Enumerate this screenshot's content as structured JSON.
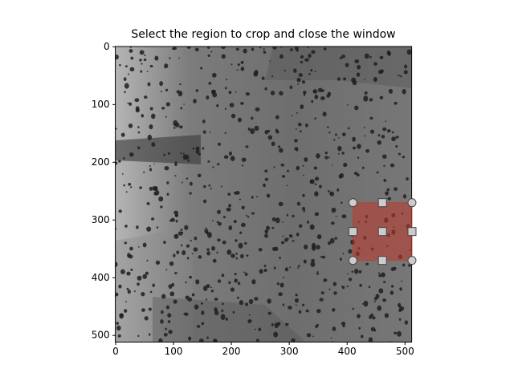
{
  "chart_data": {
    "type": "image",
    "title": "Select the region to crop and close the window",
    "xlim": [
      -0.5,
      511.5
    ],
    "ylim": [
      511.5,
      -0.5
    ],
    "xticks": [
      0,
      100,
      200,
      300,
      400,
      500
    ],
    "yticks": [
      0,
      100,
      200,
      300,
      400,
      500
    ],
    "selection": {
      "x": [
        410,
        512
      ],
      "y": [
        270,
        370
      ],
      "color": "#c0392b"
    }
  }
}
